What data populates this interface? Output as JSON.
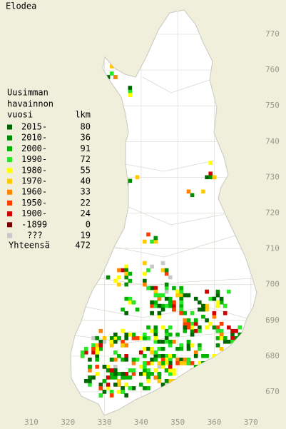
{
  "title": "Elodea",
  "legend": {
    "heading": [
      "Uusimman",
      "havainnon",
      "vuosi"
    ],
    "count_heading": "lkm",
    "rows": [
      {
        "label": "2015-",
        "count": 80,
        "color": "#006400"
      },
      {
        "label": "2010-",
        "count": 36,
        "color": "#008c00"
      },
      {
        "label": "2000-",
        "count": 91,
        "color": "#00b400"
      },
      {
        "label": "1990-",
        "count": 72,
        "color": "#28e628"
      },
      {
        "label": "1980-",
        "count": 55,
        "color": "#ffff00"
      },
      {
        "label": "1970-",
        "count": 40,
        "color": "#ffc800"
      },
      {
        "label": "1960-",
        "count": 33,
        "color": "#ff8200"
      },
      {
        "label": "1950-",
        "count": 22,
        "color": "#ff3c00"
      },
      {
        "label": "1900-",
        "count": 24,
        "color": "#d20000"
      },
      {
        "label": "-1899",
        "count": 0,
        "color": "#780000"
      },
      {
        "label": "???",
        "count": 19,
        "color": "#c8c8c8"
      }
    ],
    "total_label": "Yhteensä",
    "total": 472
  },
  "map": {
    "y_labels": [
      770,
      760,
      750,
      740,
      730,
      720,
      710,
      700,
      690,
      680,
      670
    ],
    "x_labels": [
      310,
      320,
      330,
      340,
      350,
      360,
      370
    ]
  }
}
